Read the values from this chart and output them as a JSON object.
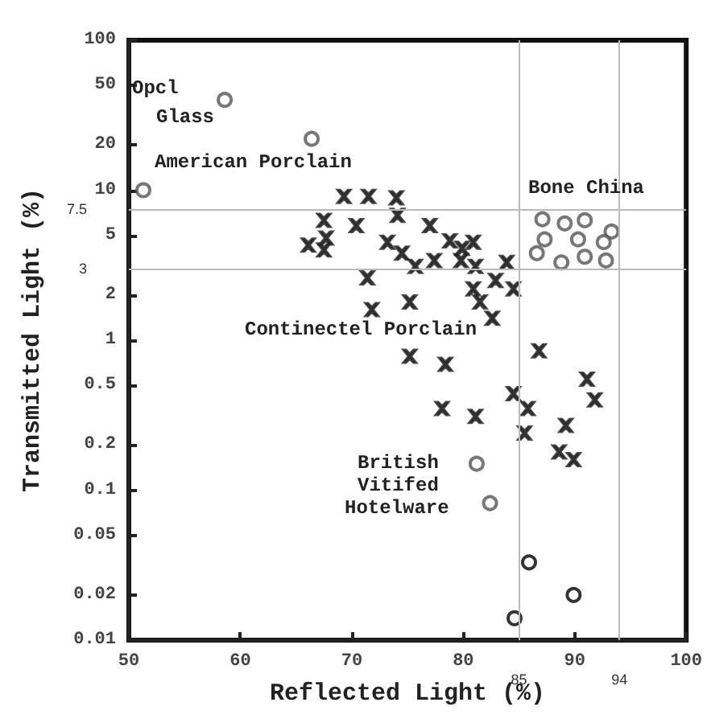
{
  "chart_data": {
    "type": "scatter",
    "xlabel": "Reflected Light (%)",
    "ylabel": "Transmitted Light (%)",
    "log": "y",
    "grid": false,
    "xlim": [
      50,
      100
    ],
    "xticks": [
      50,
      60,
      70,
      80,
      90,
      100
    ],
    "ylim": [
      0.01,
      100
    ],
    "yticks": [
      0.01,
      0.02,
      0.05,
      0.1,
      0.2,
      0.5,
      1,
      2,
      5,
      10,
      20,
      50,
      100
    ],
    "series": [
      {
        "marker": "circle",
        "color": "#555555",
        "x": [
          58.6,
          66.4,
          51.3,
          87.1,
          89.1,
          90.9,
          93.3,
          87.3,
          90.3,
          92.6,
          86.6,
          88.8,
          90.9,
          92.8,
          81.2,
          82.4
        ],
        "values": [
          40,
          22,
          10,
          6.4,
          6.0,
          6.3,
          5.3,
          4.7,
          4.7,
          4.5,
          3.8,
          3.3,
          3.6,
          3.4,
          0.15,
          0.082
        ]
      },
      {
        "marker": "cross",
        "color": "#222222",
        "x": [
          69.3,
          71.5,
          74.0,
          67.5,
          67.7,
          67.5,
          66.1,
          70.4,
          74.1,
          77.0,
          73.2,
          74.5,
          75.7,
          77.4,
          78.8,
          79.9,
          80.9,
          79.8,
          81.1,
          83.9,
          71.4,
          80.9,
          82.9,
          84.5,
          71.8,
          75.2,
          81.5,
          82.6,
          75.2,
          78.4,
          86.8,
          91.1,
          91.8,
          84.5,
          85.8,
          78.1,
          81.1,
          85.5,
          89.2,
          88.6,
          89.9
        ],
        "values": [
          9.1,
          9.1,
          8.9,
          6.3,
          4.8,
          4.0,
          4.3,
          5.8,
          6.8,
          5.8,
          4.5,
          3.8,
          3.1,
          3.4,
          4.6,
          4.1,
          4.5,
          3.4,
          3.1,
          3.3,
          2.6,
          2.2,
          2.5,
          2.2,
          1.6,
          1.8,
          1.8,
          1.4,
          0.78,
          0.69,
          0.85,
          0.55,
          0.4,
          0.44,
          0.35,
          0.35,
          0.31,
          0.24,
          0.27,
          0.18,
          0.16
        ]
      },
      {
        "marker": "circle",
        "color": "#000000",
        "x": [
          85.9,
          89.9,
          84.6
        ],
        "values": [
          0.033,
          0.02,
          0.014
        ]
      }
    ],
    "ref_lines": [
      {
        "axis": "y",
        "value": 7.5,
        "label": "7.5",
        "color": "#bbbbbb"
      },
      {
        "axis": "y",
        "value": 3,
        "label": "3",
        "color": "#bbbbbb"
      },
      {
        "axis": "x",
        "value": 85,
        "label": "85",
        "color": "#bbbbbb"
      },
      {
        "axis": "x",
        "value": 94,
        "label": "94",
        "color": "#bbbbbb"
      }
    ],
    "annotations": [
      "Opcl",
      "Glass",
      "American Porclain",
      "Bone China",
      "Continectel Porclain",
      "British",
      "Vitifed",
      "Hotelware"
    ]
  }
}
